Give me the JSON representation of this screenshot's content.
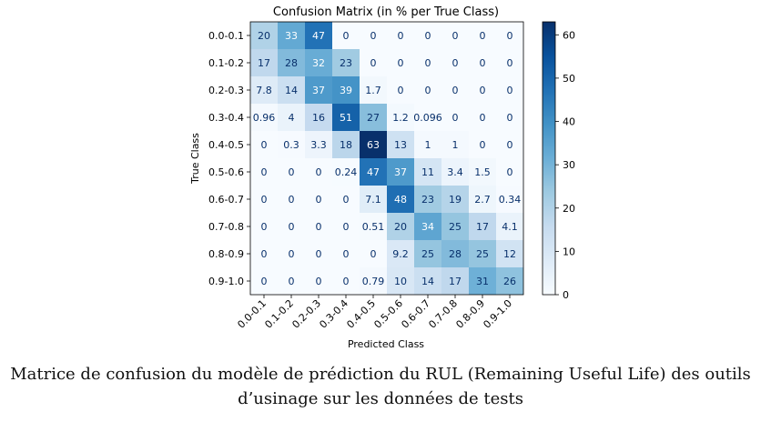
{
  "chart_data": {
    "type": "heatmap",
    "title": "Confusion Matrix (in % per True Class)",
    "xlabel": "Predicted Class",
    "ylabel": "True Class",
    "categories": [
      "0.0-0.1",
      "0.1-0.2",
      "0.2-0.3",
      "0.3-0.4",
      "0.4-0.5",
      "0.5-0.6",
      "0.6-0.7",
      "0.7-0.8",
      "0.8-0.9",
      "0.9-1.0"
    ],
    "labels": [
      [
        "20",
        "33",
        "47",
        "0",
        "0",
        "0",
        "0",
        "0",
        "0",
        "0"
      ],
      [
        "17",
        "28",
        "32",
        "23",
        "0",
        "0",
        "0",
        "0",
        "0",
        "0"
      ],
      [
        "7.8",
        "14",
        "37",
        "39",
        "1.7",
        "0",
        "0",
        "0",
        "0",
        "0"
      ],
      [
        "0.96",
        "4",
        "16",
        "51",
        "27",
        "1.2",
        "0.096",
        "0",
        "0",
        "0"
      ],
      [
        "0",
        "0.3",
        "3.3",
        "18",
        "63",
        "13",
        "1",
        "1",
        "0",
        "0"
      ],
      [
        "0",
        "0",
        "0",
        "0.24",
        "47",
        "37",
        "11",
        "3.4",
        "1.5",
        "0"
      ],
      [
        "0",
        "0",
        "0",
        "0",
        "7.1",
        "48",
        "23",
        "19",
        "2.7",
        "0.34"
      ],
      [
        "0",
        "0",
        "0",
        "0",
        "0.51",
        "20",
        "34",
        "25",
        "17",
        "4.1"
      ],
      [
        "0",
        "0",
        "0",
        "0",
        "0",
        "9.2",
        "25",
        "28",
        "25",
        "12"
      ],
      [
        "0",
        "0",
        "0",
        "0",
        "0.79",
        "10",
        "14",
        "17",
        "31",
        "26"
      ]
    ],
    "colorbar": {
      "range": [
        0,
        63
      ],
      "ticks": [
        0,
        10,
        20,
        30,
        40,
        50,
        60
      ],
      "colormap": "Blues"
    }
  },
  "caption": {
    "line1": "Matrice de confusion du modèle de prédiction du RUL (Remaining Useful Life) des outils",
    "line2": "d’usinage sur les données de tests"
  }
}
